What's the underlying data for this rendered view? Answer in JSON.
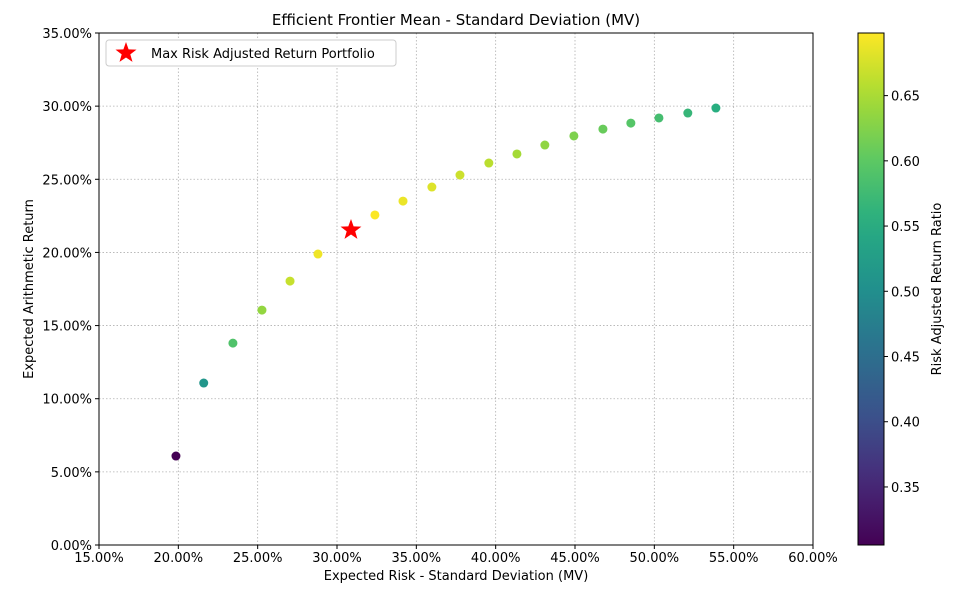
{
  "chart_data": {
    "type": "scatter",
    "title": "Efficient Frontier Mean - Standard Deviation (MV)",
    "xlabel": "Expected Risk - Standard Deviation (MV)",
    "ylabel": "Expected Arithmetic Return",
    "xlim": [
      0.15,
      0.6
    ],
    "ylim": [
      0.0,
      0.35
    ],
    "xticks": [
      0.15,
      0.2,
      0.25,
      0.3,
      0.35,
      0.4,
      0.45,
      0.5,
      0.55,
      0.6
    ],
    "xtick_labels": [
      "15.00%",
      "20.00%",
      "25.00%",
      "30.00%",
      "35.00%",
      "40.00%",
      "45.00%",
      "50.00%",
      "55.00%",
      "60.00%"
    ],
    "yticks": [
      0,
      0.05,
      0.1,
      0.15,
      0.2,
      0.25,
      0.3,
      0.35
    ],
    "ytick_labels": [
      "0.00%",
      "5.00%",
      "10.00%",
      "15.00%",
      "20.00%",
      "25.00%",
      "30.00%",
      "35.00%"
    ],
    "grid": true,
    "points": {
      "x": [
        0.1985,
        0.216,
        0.2344,
        0.2527,
        0.2704,
        0.288,
        0.3088,
        0.3239,
        0.3416,
        0.3598,
        0.3775,
        0.3957,
        0.4134,
        0.431,
        0.4493,
        0.4676,
        0.4852,
        0.5029,
        0.5211,
        0.5388
      ],
      "y": [
        0.0608,
        0.1107,
        0.138,
        0.1606,
        0.1804,
        0.1989,
        0.2153,
        0.2256,
        0.2351,
        0.2447,
        0.2529,
        0.2611,
        0.2673,
        0.2734,
        0.2796,
        0.2843,
        0.2884,
        0.2919,
        0.2953,
        0.2987
      ],
      "ratio": [
        0.306,
        0.512,
        0.589,
        0.636,
        0.667,
        0.69,
        0.697,
        0.697,
        0.688,
        0.68,
        0.67,
        0.66,
        0.647,
        0.634,
        0.622,
        0.608,
        0.594,
        0.58,
        0.567,
        0.554
      ]
    },
    "max_point": {
      "x": 0.3088,
      "y": 0.2153,
      "label": "Max Risk Adjusted Return Portfolio",
      "color": "#ff0000"
    },
    "legend_placement": "top-left",
    "colorbar": {
      "label": "Risk Adjusted Return Ratio",
      "range": [
        0.3055,
        0.698
      ],
      "ticks": [
        0.35,
        0.4,
        0.45,
        0.5,
        0.55,
        0.6,
        0.65
      ],
      "tick_labels": [
        "0.35",
        "0.40",
        "0.45",
        "0.50",
        "0.55",
        "0.60",
        "0.65"
      ],
      "colormap": "viridis"
    }
  }
}
